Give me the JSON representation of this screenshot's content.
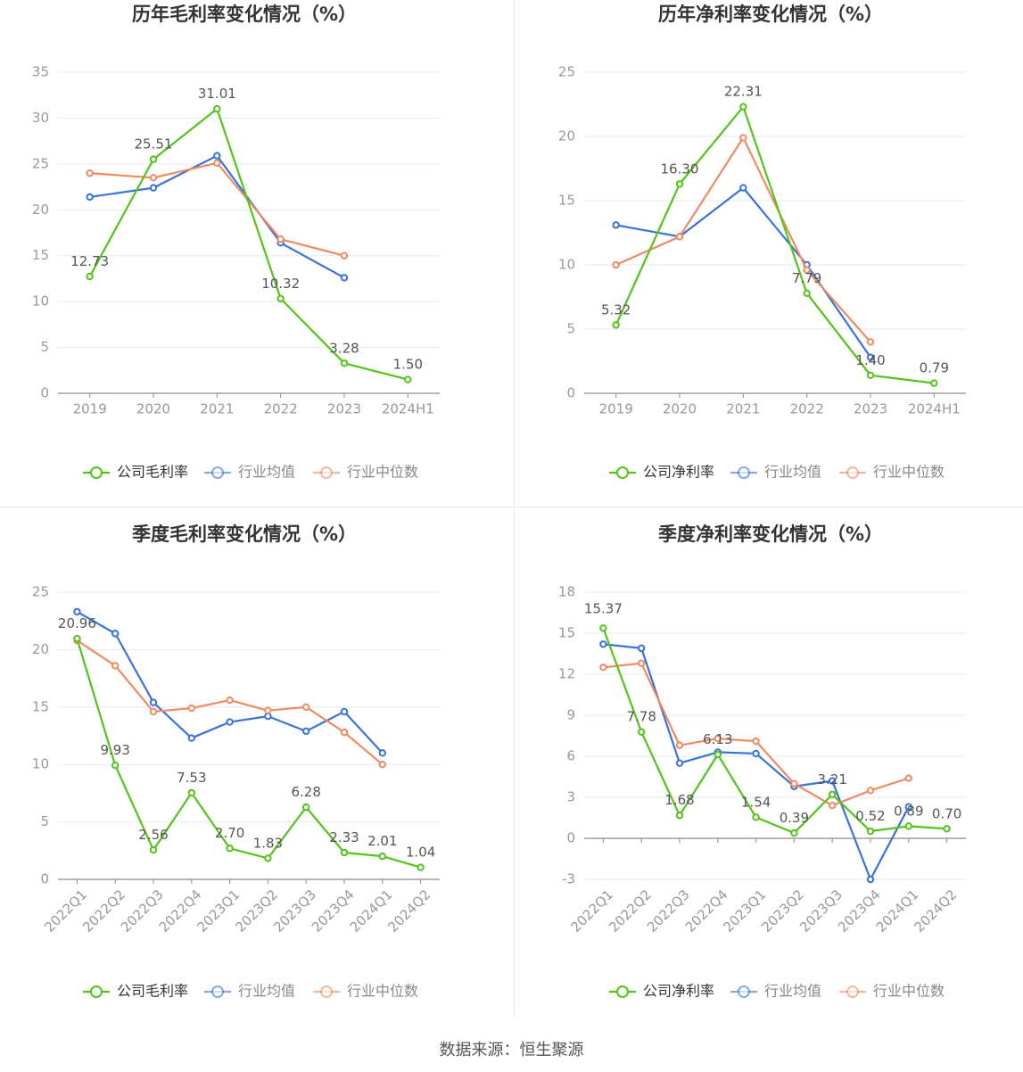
{
  "colors": {
    "company": "#52c41a",
    "industry_avg": "#3a73d9",
    "industry_median": "#f08a62",
    "grid": "#e6e9f0",
    "axis": "#999999",
    "title": "#333333",
    "label": "#555555"
  },
  "source": "数据来源：恒生聚源",
  "chart_data": [
    {
      "type": "line",
      "title": "历年毛利率变化情况（%）",
      "categories": [
        "2019",
        "2020",
        "2021",
        "2022",
        "2023",
        "2024H1"
      ],
      "ylim": [
        0,
        35
      ],
      "yticks": [
        0,
        5,
        10,
        15,
        20,
        25,
        30,
        35
      ],
      "grid": true,
      "legend_position": "bottom",
      "series": [
        {
          "name": "公司毛利率",
          "role": "company",
          "values": [
            12.73,
            25.51,
            31.01,
            10.32,
            3.28,
            1.5
          ],
          "labels": [
            "12.73",
            "25.51",
            "31.01",
            "10.32",
            "3.28",
            "1.50"
          ]
        },
        {
          "name": "行业均值",
          "role": "industry_avg",
          "values": [
            21.4,
            22.4,
            25.9,
            16.4,
            12.6,
            null
          ]
        },
        {
          "name": "行业中位数",
          "role": "industry_median",
          "values": [
            24.0,
            23.5,
            25.1,
            16.8,
            15.0,
            null
          ]
        }
      ]
    },
    {
      "type": "line",
      "title": "历年净利率变化情况（%）",
      "categories": [
        "2019",
        "2020",
        "2021",
        "2022",
        "2023",
        "2024H1"
      ],
      "ylim": [
        0,
        25
      ],
      "yticks": [
        0,
        5,
        10,
        15,
        20,
        25
      ],
      "grid": true,
      "legend_position": "bottom",
      "series": [
        {
          "name": "公司净利率",
          "role": "company",
          "values": [
            5.32,
            16.3,
            22.31,
            7.79,
            1.4,
            0.79
          ],
          "labels": [
            "5.32",
            "16.30",
            "22.31",
            "7.79",
            "1.40",
            "0.79"
          ]
        },
        {
          "name": "行业均值",
          "role": "industry_avg",
          "values": [
            13.1,
            12.2,
            16.0,
            10.0,
            2.8,
            null
          ]
        },
        {
          "name": "行业中位数",
          "role": "industry_median",
          "values": [
            10.0,
            12.2,
            19.9,
            9.6,
            4.0,
            null
          ]
        }
      ]
    },
    {
      "type": "line",
      "title": "季度毛利率变化情况（%）",
      "categories": [
        "2022Q1",
        "2022Q2",
        "2022Q3",
        "2022Q4",
        "2023Q1",
        "2023Q2",
        "2023Q3",
        "2023Q4",
        "2024Q1",
        "2024Q2"
      ],
      "ylim": [
        0,
        25
      ],
      "yticks": [
        0,
        5,
        10,
        15,
        20,
        25
      ],
      "grid": true,
      "legend_position": "bottom",
      "series": [
        {
          "name": "公司毛利率",
          "role": "company",
          "values": [
            20.96,
            9.93,
            2.56,
            7.53,
            2.7,
            1.83,
            6.28,
            2.33,
            2.01,
            1.04
          ],
          "labels": [
            "20.96",
            "9.93",
            "2.56",
            "7.53",
            "2.70",
            "1.83",
            "6.28",
            "2.33",
            "2.01",
            "1.04"
          ]
        },
        {
          "name": "行业均值",
          "role": "industry_avg",
          "values": [
            23.3,
            21.4,
            15.4,
            12.3,
            13.7,
            14.2,
            12.9,
            14.6,
            11.0,
            null
          ]
        },
        {
          "name": "行业中位数",
          "role": "industry_median",
          "values": [
            20.8,
            18.6,
            14.6,
            14.9,
            15.6,
            14.7,
            15.0,
            12.8,
            10.0,
            null
          ]
        }
      ]
    },
    {
      "type": "line",
      "title": "季度净利率变化情况（%）",
      "categories": [
        "2022Q1",
        "2022Q2",
        "2022Q3",
        "2022Q4",
        "2023Q1",
        "2023Q2",
        "2023Q3",
        "2023Q4",
        "2024Q1",
        "2024Q2"
      ],
      "ylim": [
        -3,
        18
      ],
      "yticks": [
        -3,
        0,
        3,
        6,
        9,
        12,
        15,
        18
      ],
      "grid": true,
      "legend_position": "bottom",
      "series": [
        {
          "name": "公司净利率",
          "role": "company",
          "values": [
            15.37,
            7.78,
            1.68,
            6.13,
            1.54,
            0.39,
            3.21,
            0.52,
            0.89,
            0.7
          ],
          "labels": [
            "15.37",
            "7.78",
            "1.68",
            "6.13",
            "1.54",
            "0.39",
            "3.21",
            "0.52",
            "0.89",
            "0.70"
          ]
        },
        {
          "name": "行业均值",
          "role": "industry_avg",
          "values": [
            14.2,
            13.9,
            5.5,
            6.3,
            6.2,
            3.8,
            4.2,
            -3.0,
            2.3,
            null
          ]
        },
        {
          "name": "行业中位数",
          "role": "industry_median",
          "values": [
            12.5,
            12.8,
            6.8,
            7.3,
            7.1,
            4.0,
            2.4,
            3.5,
            4.4,
            null
          ]
        }
      ]
    }
  ]
}
